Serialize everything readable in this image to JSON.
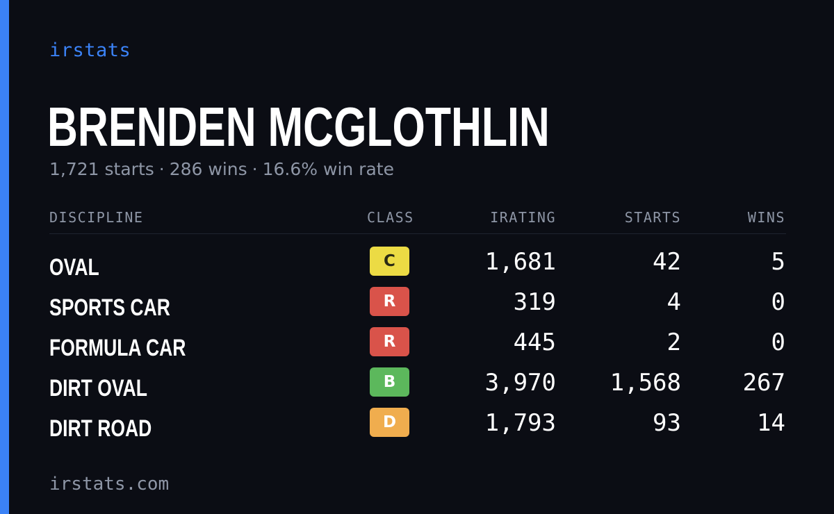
{
  "brand": "irstats",
  "driver": {
    "name": "BRENDEN MCGLOTHLIN",
    "starts": "1,721 starts",
    "wins": "286 wins",
    "win_rate": "16.6% win rate",
    "separator": "·"
  },
  "table": {
    "headers": {
      "discipline": "DISCIPLINE",
      "class": "CLASS",
      "irating": "IRATING",
      "starts": "STARTS",
      "wins": "WINS"
    },
    "rows": [
      {
        "discipline": "OVAL",
        "class": "C",
        "class_color": "#ecdb44",
        "class_text_color": "#2a2a14",
        "irating": "1,681",
        "starts": "42",
        "wins": "5"
      },
      {
        "discipline": "SPORTS CAR",
        "class": "R",
        "class_color": "#d9534a",
        "class_text_color": "#ffffff",
        "irating": "319",
        "starts": "4",
        "wins": "0"
      },
      {
        "discipline": "FORMULA CAR",
        "class": "R",
        "class_color": "#d9534a",
        "class_text_color": "#ffffff",
        "irating": "445",
        "starts": "2",
        "wins": "0"
      },
      {
        "discipline": "DIRT OVAL",
        "class": "B",
        "class_color": "#5cb85c",
        "class_text_color": "#ffffff",
        "irating": "3,970",
        "starts": "1,568",
        "wins": "267"
      },
      {
        "discipline": "DIRT ROAD",
        "class": "D",
        "class_color": "#f0ad4e",
        "class_text_color": "#ffffff",
        "irating": "1,793",
        "starts": "93",
        "wins": "14"
      }
    ]
  },
  "footer": "irstats.com",
  "colors": {
    "background": "#0b0d14",
    "accent": "#3b82f6",
    "muted": "#8e96a6"
  }
}
